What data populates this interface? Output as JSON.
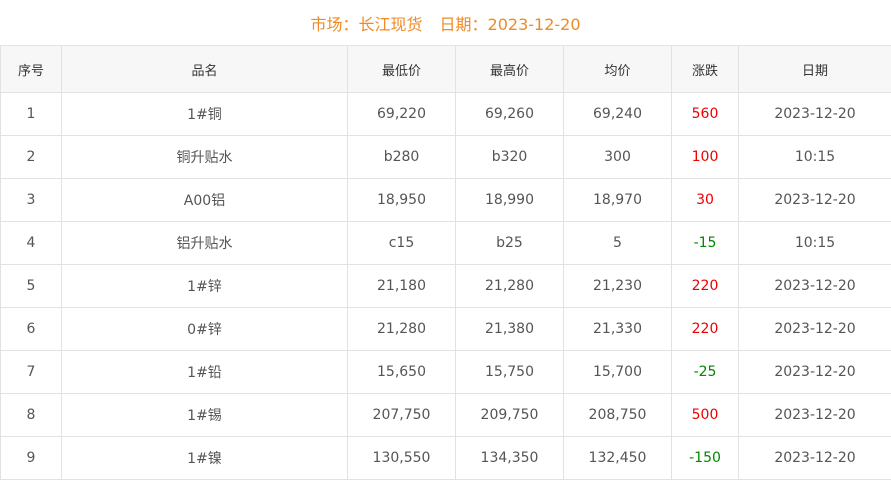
{
  "header": {
    "market_label": "市场：长江现货",
    "date_label": "日期：2023-12-20"
  },
  "columns": [
    "序号",
    "品名",
    "最低价",
    "最高价",
    "均价",
    "涨跌",
    "日期"
  ],
  "colors": {
    "title": "#f08a24",
    "up": "#ee0000",
    "down": "#008800"
  },
  "rows": [
    [
      "1",
      "1#铜",
      "69,220",
      "69,260",
      "69,240",
      "560",
      "2023-12-20"
    ],
    [
      "2",
      "铜升贴水",
      "b280",
      "b320",
      "300",
      "100",
      "10:15"
    ],
    [
      "3",
      "A00铝",
      "18,950",
      "18,990",
      "18,970",
      "30",
      "2023-12-20"
    ],
    [
      "4",
      "铝升贴水",
      "c15",
      "b25",
      "5",
      "-15",
      "10:15"
    ],
    [
      "5",
      "1#锌",
      "21,180",
      "21,280",
      "21,230",
      "220",
      "2023-12-20"
    ],
    [
      "6",
      "0#锌",
      "21,280",
      "21,380",
      "21,330",
      "220",
      "2023-12-20"
    ],
    [
      "7",
      "1#铅",
      "15,650",
      "15,750",
      "15,700",
      "-25",
      "2023-12-20"
    ],
    [
      "8",
      "1#锡",
      "207,750",
      "209,750",
      "208,750",
      "500",
      "2023-12-20"
    ],
    [
      "9",
      "1#镍",
      "130,550",
      "134,350",
      "132,450",
      "-150",
      "2023-12-20"
    ]
  ]
}
